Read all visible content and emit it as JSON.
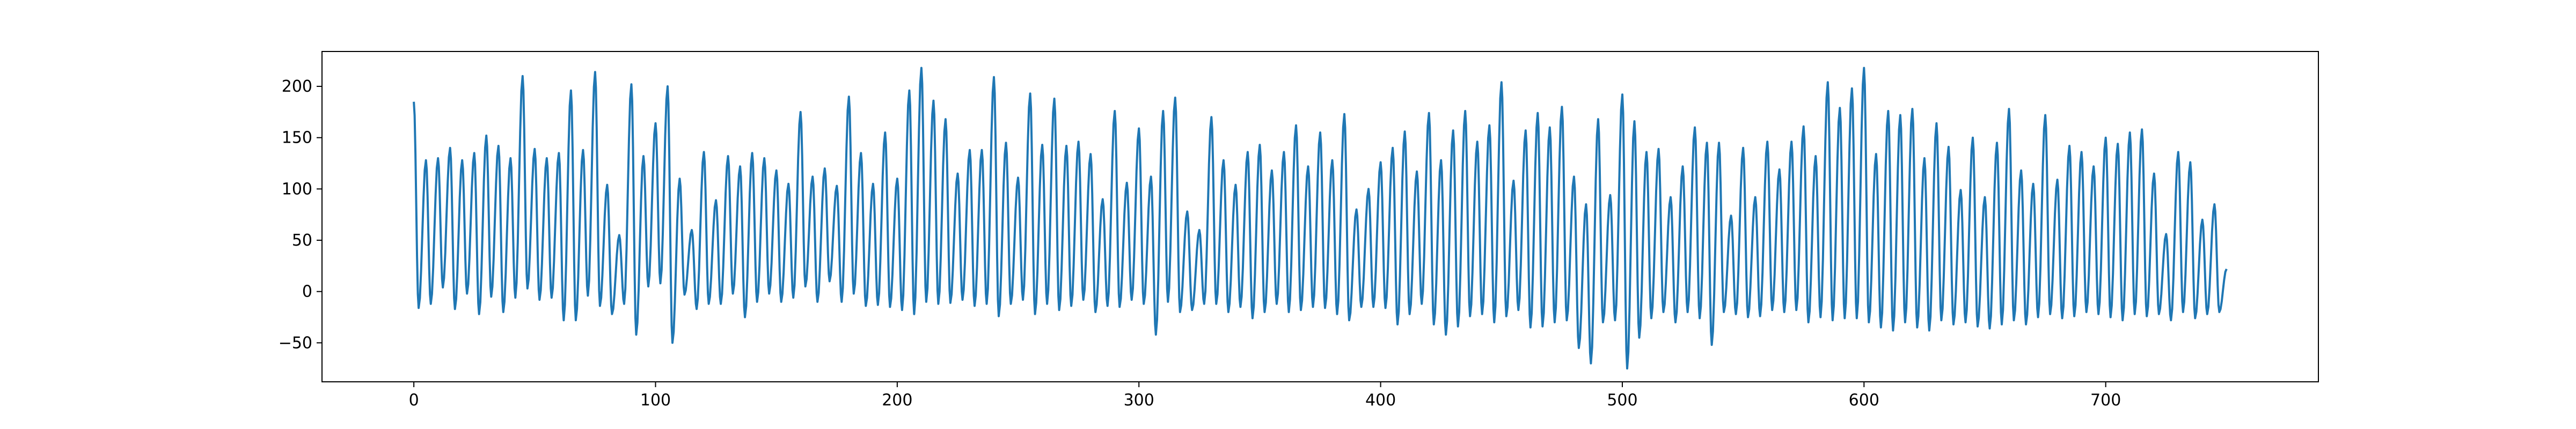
{
  "chart_data": {
    "type": "line",
    "title": "",
    "xlabel": "",
    "ylabel": "",
    "xlim": [
      -38,
      788
    ],
    "ylim": [
      -88,
      234
    ],
    "xticks": [
      0,
      100,
      200,
      300,
      400,
      500,
      600,
      700
    ],
    "yticks": [
      -50,
      0,
      50,
      100,
      150,
      200
    ],
    "xtick_labels": [
      "0",
      "100",
      "200",
      "300",
      "400",
      "500",
      "600",
      "700"
    ],
    "ytick_labels": [
      "−50",
      "0",
      "50",
      "100",
      "150",
      "200"
    ],
    "grid": false,
    "series": [
      {
        "color": "#1f77b4",
        "peaks": [
          [
            0,
            185
          ],
          [
            5,
            128
          ],
          [
            10,
            130
          ],
          [
            15,
            140
          ],
          [
            20,
            128
          ],
          [
            25,
            135
          ],
          [
            30,
            152
          ],
          [
            35,
            142
          ],
          [
            40,
            130
          ],
          [
            45,
            210
          ],
          [
            50,
            139
          ],
          [
            55,
            130
          ],
          [
            60,
            135
          ],
          [
            65,
            196
          ],
          [
            70,
            138
          ],
          [
            75,
            214
          ],
          [
            80,
            104
          ],
          [
            85,
            55
          ],
          [
            90,
            202
          ],
          [
            95,
            132
          ],
          [
            100,
            164
          ],
          [
            105,
            200
          ],
          [
            110,
            110
          ],
          [
            115,
            60
          ],
          [
            120,
            136
          ],
          [
            125,
            89
          ],
          [
            130,
            132
          ],
          [
            135,
            122
          ],
          [
            140,
            135
          ],
          [
            145,
            130
          ],
          [
            150,
            118
          ],
          [
            155,
            105
          ],
          [
            160,
            175
          ],
          [
            165,
            112
          ],
          [
            170,
            120
          ],
          [
            175,
            103
          ],
          [
            180,
            190
          ],
          [
            185,
            135
          ],
          [
            190,
            105
          ],
          [
            195,
            155
          ],
          [
            200,
            110
          ],
          [
            205,
            196
          ],
          [
            210,
            218
          ],
          [
            215,
            186
          ],
          [
            220,
            168
          ],
          [
            225,
            115
          ],
          [
            230,
            138
          ],
          [
            235,
            138
          ],
          [
            240,
            209
          ],
          [
            245,
            145
          ],
          [
            250,
            111
          ],
          [
            255,
            193
          ],
          [
            260,
            143
          ],
          [
            265,
            188
          ],
          [
            270,
            142
          ],
          [
            275,
            146
          ],
          [
            280,
            134
          ],
          [
            285,
            90
          ],
          [
            290,
            176
          ],
          [
            295,
            106
          ],
          [
            300,
            159
          ],
          [
            305,
            112
          ],
          [
            310,
            176
          ],
          [
            315,
            189
          ],
          [
            320,
            78
          ],
          [
            325,
            60
          ],
          [
            330,
            170
          ],
          [
            335,
            128
          ],
          [
            340,
            104
          ],
          [
            345,
            136
          ],
          [
            350,
            143
          ],
          [
            355,
            118
          ],
          [
            360,
            136
          ],
          [
            365,
            162
          ],
          [
            370,
            122
          ],
          [
            375,
            155
          ],
          [
            380,
            128
          ],
          [
            385,
            173
          ],
          [
            390,
            80
          ],
          [
            395,
            100
          ],
          [
            400,
            126
          ],
          [
            405,
            140
          ],
          [
            410,
            156
          ],
          [
            415,
            117
          ],
          [
            420,
            174
          ],
          [
            425,
            128
          ],
          [
            430,
            157
          ],
          [
            435,
            176
          ],
          [
            440,
            146
          ],
          [
            445,
            162
          ],
          [
            450,
            204
          ],
          [
            455,
            108
          ],
          [
            460,
            157
          ],
          [
            465,
            174
          ],
          [
            470,
            160
          ],
          [
            475,
            180
          ],
          [
            480,
            112
          ],
          [
            485,
            85
          ],
          [
            490,
            168
          ],
          [
            495,
            94
          ],
          [
            500,
            192
          ],
          [
            505,
            166
          ],
          [
            510,
            136
          ],
          [
            515,
            139
          ],
          [
            520,
            92
          ],
          [
            525,
            122
          ],
          [
            530,
            160
          ],
          [
            535,
            145
          ],
          [
            540,
            145
          ],
          [
            545,
            74
          ],
          [
            550,
            140
          ],
          [
            555,
            92
          ],
          [
            560,
            146
          ],
          [
            565,
            119
          ],
          [
            570,
            146
          ],
          [
            575,
            161
          ],
          [
            580,
            132
          ],
          [
            585,
            204
          ],
          [
            590,
            179
          ],
          [
            595,
            198
          ],
          [
            600,
            218
          ],
          [
            605,
            134
          ],
          [
            610,
            176
          ],
          [
            615,
            172
          ],
          [
            620,
            178
          ],
          [
            625,
            130
          ],
          [
            630,
            164
          ],
          [
            635,
            141
          ],
          [
            640,
            99
          ],
          [
            645,
            150
          ],
          [
            650,
            92
          ],
          [
            655,
            145
          ],
          [
            660,
            178
          ],
          [
            665,
            118
          ],
          [
            670,
            105
          ],
          [
            675,
            172
          ],
          [
            680,
            109
          ],
          [
            685,
            142
          ],
          [
            690,
            136
          ],
          [
            695,
            122
          ],
          [
            700,
            150
          ],
          [
            705,
            144
          ],
          [
            710,
            155
          ],
          [
            715,
            158
          ],
          [
            720,
            115
          ],
          [
            725,
            56
          ],
          [
            730,
            136
          ],
          [
            735,
            126
          ],
          [
            740,
            70
          ],
          [
            745,
            85
          ],
          [
            750,
            22
          ]
        ],
        "troughs": [
          [
            2,
            -16
          ],
          [
            7,
            -12
          ],
          [
            12,
            4
          ],
          [
            17,
            -17
          ],
          [
            22,
            -2
          ],
          [
            27,
            -22
          ],
          [
            32,
            -5
          ],
          [
            37,
            -20
          ],
          [
            42,
            -6
          ],
          [
            47,
            3
          ],
          [
            52,
            -8
          ],
          [
            57,
            -6
          ],
          [
            62,
            -28
          ],
          [
            67,
            -28
          ],
          [
            72,
            -4
          ],
          [
            77,
            -14
          ],
          [
            82,
            -22
          ],
          [
            87,
            -12
          ],
          [
            92,
            -42
          ],
          [
            97,
            5
          ],
          [
            102,
            8
          ],
          [
            107,
            -50
          ],
          [
            112,
            -3
          ],
          [
            117,
            -17
          ],
          [
            122,
            -12
          ],
          [
            127,
            -12
          ],
          [
            132,
            -2
          ],
          [
            137,
            -25
          ],
          [
            142,
            -10
          ],
          [
            147,
            -2
          ],
          [
            152,
            -10
          ],
          [
            157,
            -6
          ],
          [
            162,
            5
          ],
          [
            167,
            -10
          ],
          [
            172,
            10
          ],
          [
            177,
            -10
          ],
          [
            182,
            -2
          ],
          [
            187,
            -14
          ],
          [
            192,
            -13
          ],
          [
            197,
            -15
          ],
          [
            202,
            -18
          ],
          [
            207,
            -22
          ],
          [
            212,
            -10
          ],
          [
            217,
            -12
          ],
          [
            222,
            -11
          ],
          [
            227,
            -8
          ],
          [
            232,
            -14
          ],
          [
            237,
            -12
          ],
          [
            242,
            -24
          ],
          [
            247,
            -12
          ],
          [
            252,
            -8
          ],
          [
            257,
            -22
          ],
          [
            262,
            -12
          ],
          [
            267,
            -18
          ],
          [
            272,
            -14
          ],
          [
            277,
            -8
          ],
          [
            282,
            -20
          ],
          [
            287,
            -14
          ],
          [
            292,
            -15
          ],
          [
            297,
            -8
          ],
          [
            302,
            -12
          ],
          [
            307,
            -42
          ],
          [
            312,
            -10
          ],
          [
            317,
            -20
          ],
          [
            322,
            -18
          ],
          [
            327,
            -12
          ],
          [
            332,
            -12
          ],
          [
            337,
            -20
          ],
          [
            342,
            -15
          ],
          [
            347,
            -26
          ],
          [
            352,
            -20
          ],
          [
            357,
            -12
          ],
          [
            362,
            -20
          ],
          [
            367,
            -18
          ],
          [
            372,
            -15
          ],
          [
            377,
            -16
          ],
          [
            382,
            -22
          ],
          [
            387,
            -28
          ],
          [
            392,
            -15
          ],
          [
            397,
            -15
          ],
          [
            402,
            -16
          ],
          [
            407,
            -32
          ],
          [
            412,
            -22
          ],
          [
            417,
            -12
          ],
          [
            422,
            -32
          ],
          [
            427,
            -42
          ],
          [
            432,
            -34
          ],
          [
            437,
            -24
          ],
          [
            442,
            -22
          ],
          [
            447,
            -30
          ],
          [
            452,
            -24
          ],
          [
            457,
            -18
          ],
          [
            462,
            -35
          ],
          [
            467,
            -34
          ],
          [
            472,
            -30
          ],
          [
            477,
            -28
          ],
          [
            482,
            -55
          ],
          [
            487,
            -70
          ],
          [
            492,
            -30
          ],
          [
            497,
            -28
          ],
          [
            502,
            -75
          ],
          [
            507,
            -45
          ],
          [
            512,
            -26
          ],
          [
            517,
            -20
          ],
          [
            522,
            -30
          ],
          [
            527,
            -20
          ],
          [
            532,
            -26
          ],
          [
            537,
            -52
          ],
          [
            542,
            -20
          ],
          [
            547,
            -22
          ],
          [
            552,
            -25
          ],
          [
            557,
            -24
          ],
          [
            562,
            -18
          ],
          [
            567,
            -20
          ],
          [
            572,
            -18
          ],
          [
            577,
            -30
          ],
          [
            582,
            -25
          ],
          [
            587,
            -28
          ],
          [
            592,
            -26
          ],
          [
            597,
            -26
          ],
          [
            602,
            -30
          ],
          [
            607,
            -35
          ],
          [
            612,
            -38
          ],
          [
            617,
            -30
          ],
          [
            622,
            -35
          ],
          [
            627,
            -38
          ],
          [
            632,
            -28
          ],
          [
            637,
            -32
          ],
          [
            642,
            -30
          ],
          [
            647,
            -34
          ],
          [
            652,
            -36
          ],
          [
            657,
            -32
          ],
          [
            662,
            -28
          ],
          [
            667,
            -32
          ],
          [
            672,
            -25
          ],
          [
            677,
            -22
          ],
          [
            682,
            -26
          ],
          [
            687,
            -24
          ],
          [
            692,
            -20
          ],
          [
            697,
            -22
          ],
          [
            702,
            -25
          ],
          [
            707,
            -28
          ],
          [
            712,
            -22
          ],
          [
            717,
            -24
          ],
          [
            722,
            -22
          ],
          [
            727,
            -28
          ],
          [
            732,
            -20
          ],
          [
            737,
            -26
          ],
          [
            742,
            -22
          ],
          [
            747,
            -20
          ]
        ]
      }
    ]
  }
}
